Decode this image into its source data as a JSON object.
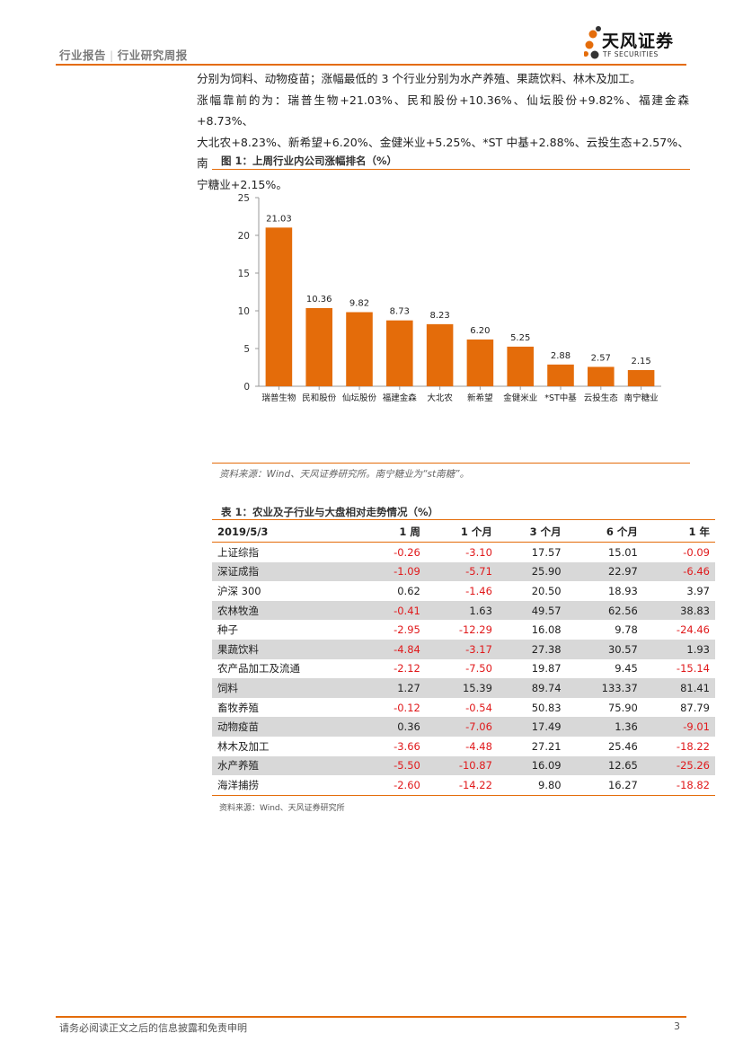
{
  "header": {
    "report_type": "行业报告",
    "report_name": "行业研究周报",
    "logo_cn": "天风证券",
    "logo_en": "TF SECURITIES"
  },
  "body": {
    "lines": [
      "分别为饲料、动物疫苗；涨幅最低的 3 个行业分别为水产养殖、果蔬饮料、林木及加工。",
      "涨幅靠前的为：瑞普生物+21.03%、民和股份+10.36%、仙坛股份+9.82%、福建金森+8.73%、",
      "大北农+8.23%、新希望+6.20%、金健米业+5.25%、*ST 中基+2.88%、云投生态+2.57%、南",
      "宁糖业+2.15%。"
    ]
  },
  "figure": {
    "title": "图 1：上周行业内公司涨幅排名（%）",
    "source": "资料来源：Wind、天风证券研究所。南宁糖业为“st南糖”。"
  },
  "chart_data": {
    "type": "bar",
    "categories": [
      "瑞普生物",
      "民和股份",
      "仙坛股份",
      "福建金森",
      "大北农",
      "新希望",
      "金健米业",
      "*ST中基",
      "云投生态",
      "南宁糖业"
    ],
    "values": [
      21.03,
      10.36,
      9.82,
      8.73,
      8.23,
      6.2,
      5.25,
      2.88,
      2.57,
      2.15
    ],
    "labels": [
      "21.03",
      "10.36",
      "9.82",
      "8.73",
      "8.23",
      "6.20",
      "5.25",
      "2.88",
      "2.57",
      "2.15"
    ],
    "ylim": [
      0,
      25
    ],
    "yticks": [
      "0",
      "5",
      "10",
      "15",
      "20",
      "25"
    ],
    "color": "#e46c0a",
    "grid": false,
    "legend": "none"
  },
  "table": {
    "title": "表 1：农业及子行业与大盘相对走势情况（%）",
    "headers": [
      "2019/5/3",
      "1 周",
      "1 个月",
      "3 个月",
      "6 个月",
      "1 年"
    ],
    "rows": [
      [
        "上证综指",
        "-0.26",
        "-3.10",
        "17.57",
        "15.01",
        "-0.09"
      ],
      [
        "深证成指",
        "-1.09",
        "-5.71",
        "25.90",
        "22.97",
        "-6.46"
      ],
      [
        "沪深 300",
        "0.62",
        "-1.46",
        "20.50",
        "18.93",
        "3.97"
      ],
      [
        "农林牧渔",
        "-0.41",
        "1.63",
        "49.57",
        "62.56",
        "38.83"
      ],
      [
        "种子",
        "-2.95",
        "-12.29",
        "16.08",
        "9.78",
        "-24.46"
      ],
      [
        "果蔬饮料",
        "-4.84",
        "-3.17",
        "27.38",
        "30.57",
        "1.93"
      ],
      [
        "农产品加工及流通",
        "-2.12",
        "-7.50",
        "19.87",
        "9.45",
        "-15.14"
      ],
      [
        "饲料",
        "1.27",
        "15.39",
        "89.74",
        "133.37",
        "81.41"
      ],
      [
        "畜牧养殖",
        "-0.12",
        "-0.54",
        "50.83",
        "75.90",
        "87.79"
      ],
      [
        "动物疫苗",
        "0.36",
        "-7.06",
        "17.49",
        "1.36",
        "-9.01"
      ],
      [
        "林木及加工",
        "-3.66",
        "-4.48",
        "27.21",
        "25.46",
        "-18.22"
      ],
      [
        "水产养殖",
        "-5.50",
        "-10.87",
        "16.09",
        "12.65",
        "-25.26"
      ],
      [
        "海洋捕捞",
        "-2.60",
        "-14.22",
        "9.80",
        "16.27",
        "-18.82"
      ]
    ],
    "source": "资料来源：Wind、天风证券研究所"
  },
  "footer": {
    "disclaimer": "请务必阅读正文之后的信息披露和免责申明",
    "page": "3"
  }
}
